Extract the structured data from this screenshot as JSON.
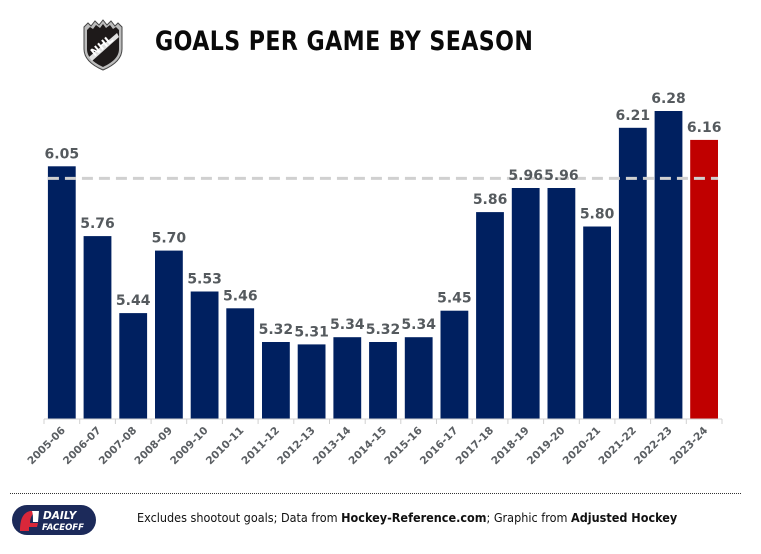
{
  "header": {
    "logo_icon": "nhl-shield-logo",
    "logo_text": "NHL",
    "title": "GOALS PER GAME BY SEASON"
  },
  "colors": {
    "bar": "#002060",
    "highlight_bar": "#c00000",
    "reference_line": "#d0d0d0",
    "label": "#555a5e"
  },
  "chart_data": {
    "type": "bar",
    "title": "GOALS PER GAME BY SEASON",
    "xlabel": "",
    "ylabel": "",
    "categories": [
      "2005-06",
      "2006-07",
      "2007-08",
      "2008-09",
      "2009-10",
      "2010-11",
      "2011-12",
      "2012-13",
      "2013-14",
      "2014-15",
      "2015-16",
      "2016-17",
      "2017-18",
      "2018-19",
      "2019-20",
      "2020-21",
      "2021-22",
      "2022-23",
      "2023-24"
    ],
    "values": [
      6.05,
      5.76,
      5.44,
      5.7,
      5.53,
      5.46,
      5.32,
      5.31,
      5.34,
      5.32,
      5.34,
      5.45,
      5.86,
      5.96,
      5.96,
      5.8,
      6.21,
      6.28,
      6.16
    ],
    "data_labels": [
      "6.05",
      "5.76",
      "5.44",
      "5.70",
      "5.53",
      "5.46",
      "5.32",
      "5.31",
      "5.34",
      "5.32",
      "5.34",
      "5.45",
      "5.86",
      "5.96",
      "5.96",
      "5.80",
      "6.21",
      "6.28",
      "6.16"
    ],
    "highlighted_category": "2023-24",
    "reference_line": {
      "value": 6.0,
      "style": "dashed"
    },
    "ylim": [
      5.0,
      6.35
    ],
    "grid": false,
    "y_axis_visible": false,
    "legend": "none"
  },
  "footer": {
    "brand_logo": "daily-faceoff-logo",
    "brand_line1": "DAILY",
    "brand_line2": "FACEOFF",
    "note_part1": "Excludes shootout goals; Data from ",
    "note_source": "Hockey-Reference.com",
    "note_part2": "; Graphic from ",
    "note_credit": "Adjusted Hockey"
  }
}
